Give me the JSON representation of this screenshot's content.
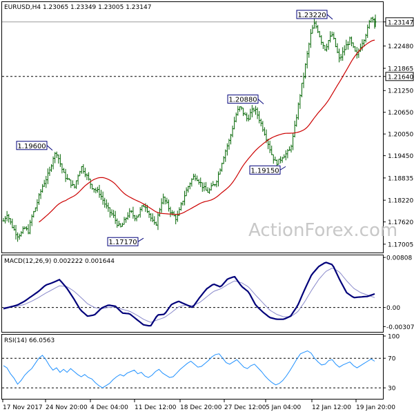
{
  "chart_data": [
    {
      "type": "ohlc",
      "title": "EURUSD,H4  1.23065 1.23349 1.23005 1.23147",
      "instrument": "EURUSD",
      "timeframe": "H4",
      "last_bar": {
        "open": 1.23065,
        "high": 1.23349,
        "low": 1.23005,
        "close": 1.23147
      },
      "ylim": [
        1.1685,
        1.236
      ],
      "y_ticks": [
        "1.23147",
        "1.22480",
        "1.21865",
        "1.21640",
        "1.21250",
        "1.20650",
        "1.20050",
        "1.19450",
        "1.18835",
        "1.18220",
        "1.17620",
        "1.17005"
      ],
      "current_price": 1.23147,
      "current_price_label": "1.23147",
      "level_line": 1.2164,
      "level_line_label": "1.21640",
      "x_tick_labels": [
        "17 Nov 2017",
        "24 Nov 20:00",
        "4 Dec 04:00",
        "11 Dec 12:00",
        "18 Dec 20:00",
        "27 Dec 12:00",
        "5 Jan 04:00",
        "12 Jan 12:00",
        "19 Jan 20:00"
      ],
      "annotations": [
        {
          "label": "1.19600",
          "value": 1.196,
          "kind": "high"
        },
        {
          "label": "1.17170",
          "value": 1.1717,
          "kind": "low"
        },
        {
          "label": "1.20880",
          "value": 1.2088,
          "kind": "high"
        },
        {
          "label": "1.19150",
          "value": 1.1915,
          "kind": "low"
        },
        {
          "label": "1.23220",
          "value": 1.2322,
          "kind": "high"
        }
      ],
      "closes": [
        1.1765,
        1.1785,
        1.176,
        1.174,
        1.1725,
        1.173,
        1.1745,
        1.1735,
        1.1775,
        1.18,
        1.183,
        1.186,
        1.188,
        1.19,
        1.194,
        1.1955,
        1.1925,
        1.1895,
        1.188,
        1.187,
        1.1855,
        1.189,
        1.1915,
        1.19,
        1.188,
        1.186,
        1.185,
        1.1845,
        1.1825,
        1.1805,
        1.179,
        1.178,
        1.176,
        1.1745,
        1.176,
        1.178,
        1.179,
        1.1775,
        1.178,
        1.18,
        1.181,
        1.179,
        1.1765,
        1.175,
        1.179,
        1.183,
        1.1815,
        1.1795,
        1.178,
        1.177,
        1.18,
        1.183,
        1.1855,
        1.1875,
        1.189,
        1.188,
        1.1865,
        1.185,
        1.1845,
        1.186,
        1.187,
        1.19,
        1.1935,
        1.1965,
        1.199,
        1.203,
        1.2065,
        1.208,
        1.206,
        1.2045,
        1.2065,
        1.2075,
        1.2055,
        1.203,
        1.2005,
        1.1975,
        1.1945,
        1.1925,
        1.193,
        1.1945,
        1.195,
        1.196,
        1.2,
        1.206,
        1.212,
        1.217,
        1.223,
        1.2285,
        1.231,
        1.229,
        1.226,
        1.224,
        1.2265,
        1.228,
        1.2245,
        1.221,
        1.223,
        1.225,
        1.2265,
        1.224,
        1.222,
        1.225,
        1.227,
        1.2295,
        1.233,
        1.2315
      ],
      "sma": {
        "name": "",
        "color": "#cc0000"
      }
    },
    {
      "type": "line",
      "title": "MACD(12,26,9) 0.002222 0.001644",
      "name": "MACD",
      "params": "12,26,9",
      "macd_value": 0.002222,
      "signal_value": 0.001644,
      "ylim": [
        -0.0036,
        0.0082
      ],
      "y_ticks": [
        "0.00808",
        "0.00",
        "-0.003078"
      ],
      "macd": [
        -0.0002,
        0.0001,
        0.0004,
        0.001,
        0.0018,
        0.0026,
        0.0036,
        0.004,
        0.0045,
        0.0032,
        0.0015,
        -0.0004,
        -0.0014,
        -0.0012,
        -0.0001,
        0.0004,
        0.0002,
        -0.0009,
        -0.001,
        -0.0019,
        -0.0028,
        -0.003,
        -0.0012,
        -0.0011,
        0.0005,
        0.001,
        0.0005,
        0.0,
        0.0016,
        0.003,
        0.0038,
        0.0033,
        0.0046,
        0.005,
        0.0034,
        0.0025,
        0.0004,
        -0.0007,
        -0.0016,
        -0.0019,
        -0.0019,
        -0.0014,
        0.0003,
        0.0029,
        0.0053,
        0.0066,
        0.0073,
        0.0069,
        0.0045,
        0.0024,
        0.0016,
        0.0017,
        0.0018,
        0.0022
      ],
      "signal": [
        0.0,
        0.0001,
        0.0002,
        0.0005,
        0.001,
        0.0016,
        0.0023,
        0.0029,
        0.0035,
        0.0034,
        0.0027,
        0.0017,
        0.0006,
        0.0,
        -0.0002,
        0.0,
        0.0001,
        -0.0003,
        -0.0006,
        -0.0012,
        -0.0019,
        -0.0024,
        -0.002,
        -0.0016,
        -0.0008,
        0.0001,
        0.0004,
        0.0003,
        0.0008,
        0.0017,
        0.0026,
        0.003,
        0.0037,
        0.0043,
        0.004,
        0.0033,
        0.002,
        0.0008,
        -0.0004,
        -0.0011,
        -0.0015,
        -0.0015,
        -0.0007,
        0.0009,
        0.0028,
        0.0045,
        0.0058,
        0.0064,
        0.0057,
        0.0043,
        0.0031,
        0.0024,
        0.002,
        0.0016
      ]
    },
    {
      "type": "line",
      "title": "RSI(14) 66.0563",
      "name": "RSI",
      "period": 14,
      "value": 66.0563,
      "ylim": [
        18,
        100
      ],
      "y_ticks": [
        "100",
        "70",
        "30"
      ],
      "levels": [
        70,
        30
      ],
      "values": [
        60,
        57,
        49,
        43,
        35,
        40,
        47,
        52,
        56,
        63,
        70,
        74,
        68,
        60,
        54,
        57,
        51,
        55,
        51,
        56,
        52,
        48,
        45,
        48,
        44,
        42,
        37,
        33,
        30,
        33,
        36,
        41,
        45,
        48,
        46,
        50,
        52,
        54,
        49,
        51,
        46,
        44,
        47,
        52,
        55,
        50,
        47,
        44,
        45,
        50,
        55,
        59,
        63,
        66,
        62,
        58,
        59,
        63,
        67,
        72,
        75,
        76,
        70,
        64,
        62,
        65,
        68,
        63,
        58,
        56,
        60,
        62,
        57,
        52,
        46,
        41,
        37,
        34,
        36,
        40,
        46,
        53,
        61,
        69,
        76,
        78,
        80,
        77,
        70,
        65,
        61,
        62,
        67,
        68,
        62,
        58,
        61,
        63,
        65,
        60,
        57,
        60,
        63,
        66,
        69,
        66
      ]
    }
  ],
  "watermark": "ActionForex.com"
}
